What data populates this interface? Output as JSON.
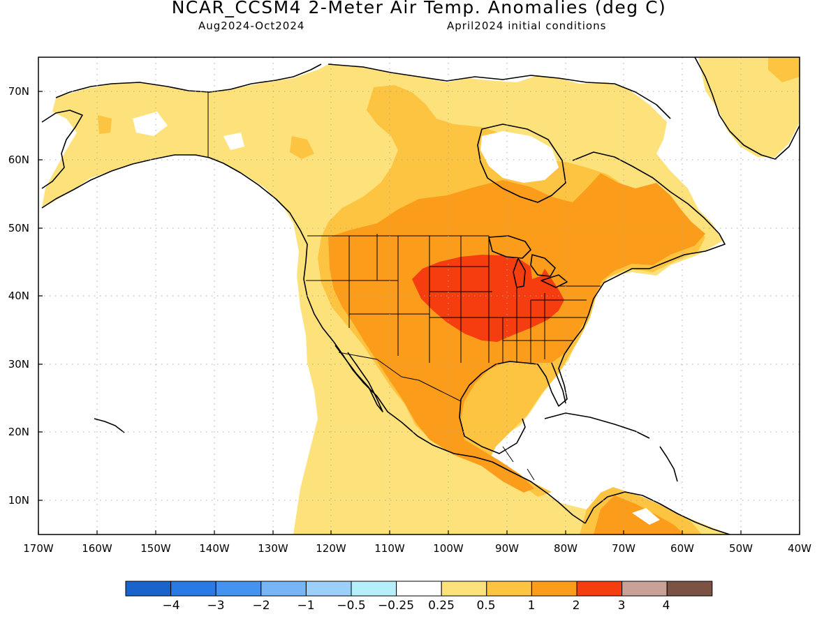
{
  "title": "NCAR_CCSM4 2-Meter Air Temp. Anomalies (deg C)",
  "subtitle_left": "Aug2024-Oct2024",
  "subtitle_right": "April2024 initial conditions",
  "lat_labels": [
    "70N",
    "60N",
    "50N",
    "40N",
    "30N",
    "20N",
    "10N"
  ],
  "lon_labels": [
    "170W",
    "160W",
    "150W",
    "140W",
    "130W",
    "120W",
    "110W",
    "100W",
    "90W",
    "80W",
    "70W",
    "60W",
    "50W",
    "40W"
  ],
  "colorbar": {
    "colors": [
      "#1a63cc",
      "#2a7ae6",
      "#4493f0",
      "#78b5f5",
      "#9dd0f9",
      "#b5f0fa",
      "#ffffff",
      "#fde27c",
      "#fcc440",
      "#fb9d1a",
      "#f53d10",
      "#c9a197",
      "#7c5243"
    ],
    "labels": [
      "−4",
      "−3",
      "−2",
      "−1",
      "−0.5",
      "−0.25",
      "0.25",
      "0.5",
      "1",
      "2",
      "3",
      "4"
    ]
  },
  "anomaly_regions": [
    {
      "level": "0.25 to 0.5",
      "color": "#fde27c",
      "area": "Alaska, western and northern Canada, Greenland"
    },
    {
      "level": "0.5 to 1",
      "color": "#fcc440",
      "area": "Canadian interior, West Coast, Mexico, northern South America"
    },
    {
      "level": "1 to 2",
      "color": "#fb9d1a",
      "area": "Contiguous United States, eastern Canada, Mexico"
    },
    {
      "level": "2 to 3",
      "color": "#f53d10",
      "area": "Central Plains, Midwest and Ohio Valley"
    }
  ]
}
